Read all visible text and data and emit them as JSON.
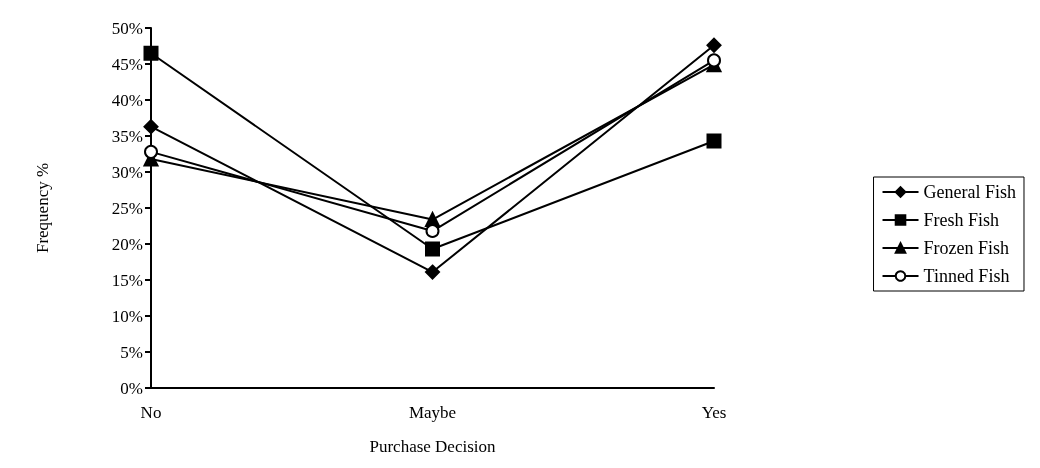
{
  "chart_data": {
    "type": "line",
    "xlabel": "Purchase Decision",
    "ylabel": "Frequency %",
    "categories": [
      "No",
      "Maybe",
      "Yes"
    ],
    "series": [
      {
        "name": "General Fish",
        "color": "#000000",
        "marker": "diamond",
        "values": [
          36.3,
          16.1,
          47.6
        ]
      },
      {
        "name": "Fresh Fish",
        "color": "#000000",
        "marker": "square",
        "values": [
          46.5,
          19.3,
          34.3
        ]
      },
      {
        "name": "Frozen Fish",
        "color": "#000000",
        "marker": "triangle",
        "values": [
          31.8,
          23.4,
          44.9
        ]
      },
      {
        "name": "Tinned Fish",
        "color": "#000000",
        "marker": "circle",
        "values": [
          32.8,
          21.8,
          45.5
        ]
      }
    ],
    "ylim": [
      0,
      50
    ],
    "yticks": [
      {
        "value": 0,
        "label": "0%"
      },
      {
        "value": 5,
        "label": "5%"
      },
      {
        "value": 10,
        "label": "10%"
      },
      {
        "value": 15,
        "label": "15%"
      },
      {
        "value": 20,
        "label": "20%"
      },
      {
        "value": 25,
        "label": "25%"
      },
      {
        "value": 30,
        "label": "30%"
      },
      {
        "value": 35,
        "label": "35%"
      },
      {
        "value": 40,
        "label": "40%"
      },
      {
        "value": 45,
        "label": "45%"
      },
      {
        "value": 50,
        "label": "50%"
      }
    ],
    "grid": false,
    "legend": "right",
    "line_style": "solid"
  }
}
